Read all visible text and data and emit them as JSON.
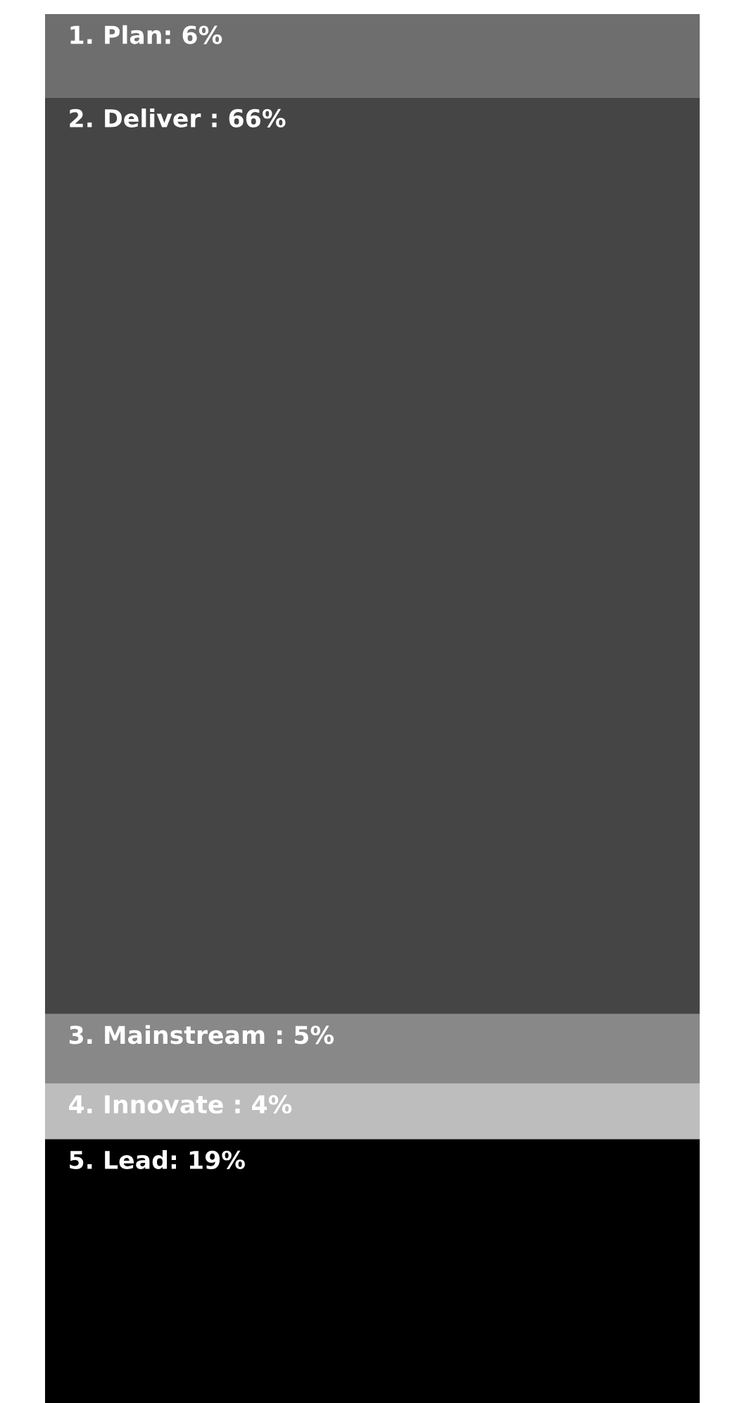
{
  "chart_data": {
    "type": "bar",
    "stacked": true,
    "categories": [
      null
    ],
    "ylim": [
      0,
      100
    ],
    "tick_labels": false,
    "grid": false,
    "series": [
      {
        "color": "#000000",
        "values": [
          19
        ],
        "value_labels": [
          "5. Lead: 19%"
        ]
      },
      {
        "color": "#bdbdbd",
        "values": [
          4
        ],
        "value_labels": [
          "4. Innovate : 4%"
        ]
      },
      {
        "color": "#888888",
        "values": [
          5
        ],
        "value_labels": [
          "3. Mainstream : 5%"
        ]
      },
      {
        "color": "#454545",
        "values": [
          66
        ],
        "value_labels": [
          "2. Deliver : 66%"
        ]
      },
      {
        "color": "#6e6e6e",
        "values": [
          6
        ],
        "value_labels": [
          "1. Plan: 6%"
        ]
      }
    ]
  }
}
